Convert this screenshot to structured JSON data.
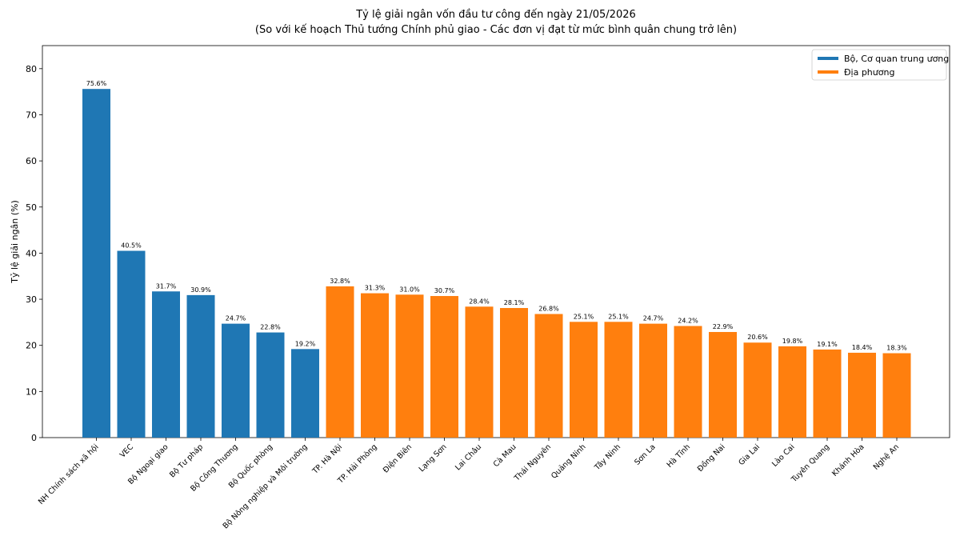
{
  "chart_data": {
    "type": "bar",
    "title": "Tỷ lệ giải ngân vốn đầu tư công đến ngày 21/05/2026",
    "subtitle": "(So với kế hoạch Thủ tướng Chính phủ giao - Các đơn vị đạt từ mức bình quân chung trở lên)",
    "xlabel": "",
    "ylabel": "Tỷ lệ giải ngân (%)",
    "ylim": [
      0,
      85
    ],
    "yticks": [
      0,
      10,
      20,
      30,
      40,
      50,
      60,
      70,
      80
    ],
    "grid": false,
    "legend_position": "top-right",
    "categories": [
      "NH Chính sách xã hội",
      "VEC",
      "Bộ Ngoại giao",
      "Bộ Tư pháp",
      "Bộ Công Thương",
      "Bộ Quốc phòng",
      "Bộ Nông nghiệp và Môi trường",
      "TP. Hà Nội",
      "TP. Hải Phòng",
      "Điện Biên",
      "Lạng Sơn",
      "Lai Châu",
      "Cà Mau",
      "Thái Nguyên",
      "Quảng Ninh",
      "Tây Ninh",
      "Sơn La",
      "Hà Tĩnh",
      "Đồng Nai",
      "Gia Lai",
      "Lào Cai",
      "Tuyên Quang",
      "Khánh Hòa",
      "Nghệ An"
    ],
    "values": [
      75.6,
      40.5,
      31.7,
      30.9,
      24.7,
      22.8,
      19.2,
      32.8,
      31.3,
      31.0,
      30.7,
      28.4,
      28.1,
      26.8,
      25.1,
      25.1,
      24.7,
      24.2,
      22.9,
      20.6,
      19.8,
      19.1,
      18.4,
      18.3
    ],
    "value_labels": [
      "75.6%",
      "40.5%",
      "31.7%",
      "30.9%",
      "24.7%",
      "22.8%",
      "19.2%",
      "32.8%",
      "31.3%",
      "31.0%",
      "30.7%",
      "28.4%",
      "28.1%",
      "26.8%",
      "25.1%",
      "25.1%",
      "24.7%",
      "24.2%",
      "22.9%",
      "20.6%",
      "19.8%",
      "19.1%",
      "18.4%",
      "18.3%"
    ],
    "groups": [
      0,
      0,
      0,
      0,
      0,
      0,
      0,
      1,
      1,
      1,
      1,
      1,
      1,
      1,
      1,
      1,
      1,
      1,
      1,
      1,
      1,
      1,
      1,
      1
    ],
    "series": [
      {
        "name": "Bộ, Cơ quan trung ương",
        "color": "#1f77b4"
      },
      {
        "name": "Địa phương",
        "color": "#ff7f0e"
      }
    ]
  }
}
